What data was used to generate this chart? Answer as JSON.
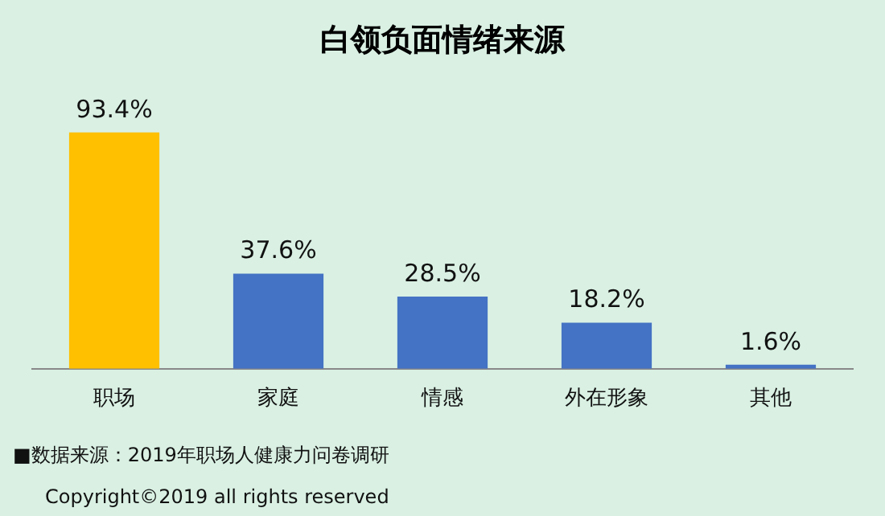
{
  "chart_data": {
    "type": "bar",
    "title": "白领负面情绪来源",
    "categories": [
      "职场",
      "家庭",
      "情感",
      "外在形象",
      "其他"
    ],
    "values": [
      93.4,
      37.6,
      28.5,
      18.2,
      1.6
    ],
    "colors": [
      "#ffc000",
      "#4472c4",
      "#4472c4",
      "#4472c4",
      "#4472c4"
    ],
    "value_labels": [
      "93.4%",
      "37.6%",
      "28.5%",
      "18.2%",
      "1.6%"
    ],
    "tick_labels": "x",
    "grid": false,
    "legend": false,
    "annotations": [
      "■数据来源：2019年职场人健康力问卷调研",
      "Copyright©2019 all rights reserved"
    ]
  }
}
